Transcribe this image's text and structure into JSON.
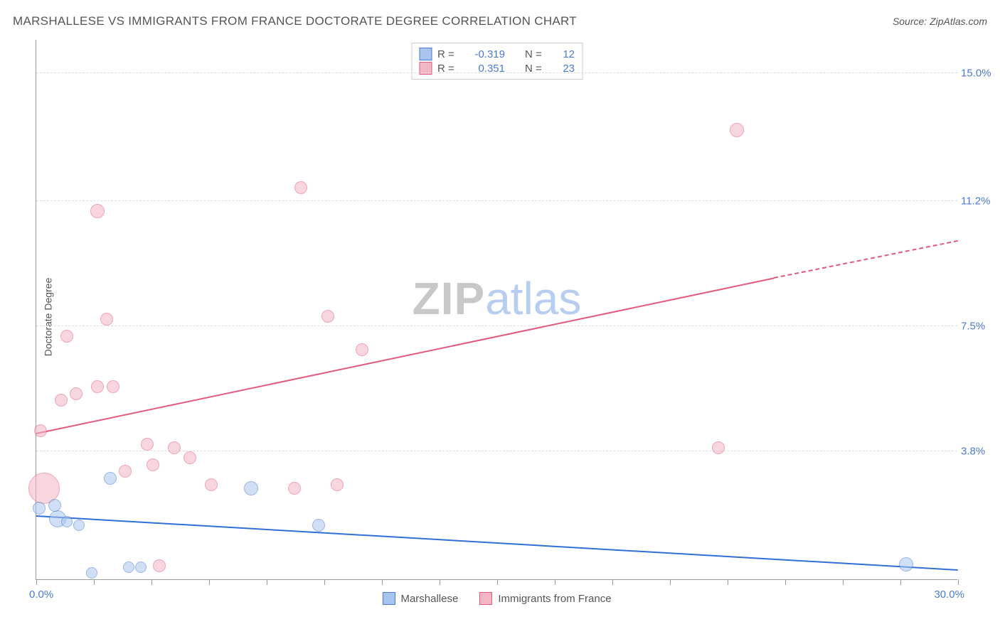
{
  "title": "MARSHALLESE VS IMMIGRANTS FROM FRANCE DOCTORATE DEGREE CORRELATION CHART",
  "source_label": "Source: ZipAtlas.com",
  "y_axis_label": "Doctorate Degree",
  "watermark": {
    "part1": "ZIP",
    "part2": "atlas"
  },
  "chart": {
    "type": "scatter",
    "x_range": [
      0,
      30
    ],
    "y_range": [
      0,
      16
    ],
    "x_min_label": "0.0%",
    "x_max_label": "30.0%",
    "x_tick_positions_pct": [
      0,
      6.25,
      12.5,
      18.75,
      25,
      31.25,
      37.5,
      43.75,
      50,
      56.25,
      62.5,
      68.75,
      75,
      81.25,
      87.5,
      93.75,
      100
    ],
    "y_ticks": [
      {
        "value": 3.8,
        "label": "3.8%"
      },
      {
        "value": 7.5,
        "label": "7.5%"
      },
      {
        "value": 11.2,
        "label": "11.2%"
      },
      {
        "value": 15.0,
        "label": "15.0%"
      }
    ],
    "background_color": "#ffffff",
    "grid_color": "#dddddd",
    "axis_color": "#999999",
    "tick_label_color": "#4a7bd0"
  },
  "series": [
    {
      "name": "Marshallese",
      "fill_color": "#a8c5ee",
      "stroke_color": "#4a7bd0",
      "fill_opacity": 0.55,
      "r_value": "-0.319",
      "n_value": "12",
      "regression": {
        "x0": 0,
        "y0": 1.85,
        "x_solid_end": 30,
        "y_solid_end": 0.25,
        "line_color": "#2f6fd6",
        "has_dashed": false
      },
      "points": [
        {
          "x": 0.1,
          "y": 2.1,
          "r": 9
        },
        {
          "x": 0.7,
          "y": 1.8,
          "r": 12
        },
        {
          "x": 0.6,
          "y": 2.2,
          "r": 9
        },
        {
          "x": 1.0,
          "y": 1.7,
          "r": 8
        },
        {
          "x": 1.4,
          "y": 1.6,
          "r": 8
        },
        {
          "x": 1.8,
          "y": 0.2,
          "r": 8
        },
        {
          "x": 2.4,
          "y": 3.0,
          "r": 9
        },
        {
          "x": 3.0,
          "y": 0.35,
          "r": 8
        },
        {
          "x": 3.4,
          "y": 0.35,
          "r": 8
        },
        {
          "x": 7.0,
          "y": 2.7,
          "r": 10
        },
        {
          "x": 9.2,
          "y": 1.6,
          "r": 9
        },
        {
          "x": 28.3,
          "y": 0.45,
          "r": 10
        }
      ]
    },
    {
      "name": "Immigrants from France",
      "fill_color": "#f2b6c4",
      "stroke_color": "#e15a7e",
      "fill_opacity": 0.55,
      "r_value": "0.351",
      "n_value": "23",
      "regression": {
        "x0": 0,
        "y0": 4.3,
        "x_solid_end": 24,
        "y_solid_end": 8.9,
        "x_dash_end": 30,
        "y_dash_end": 10.0,
        "line_color": "#e15a7e",
        "has_dashed": true
      },
      "points": [
        {
          "x": 0.15,
          "y": 4.4,
          "r": 9
        },
        {
          "x": 0.25,
          "y": 2.7,
          "r": 22
        },
        {
          "x": 0.8,
          "y": 5.3,
          "r": 9
        },
        {
          "x": 1.0,
          "y": 7.2,
          "r": 9
        },
        {
          "x": 1.3,
          "y": 5.5,
          "r": 9
        },
        {
          "x": 2.0,
          "y": 10.9,
          "r": 10
        },
        {
          "x": 2.0,
          "y": 5.7,
          "r": 9
        },
        {
          "x": 2.3,
          "y": 7.7,
          "r": 9
        },
        {
          "x": 2.5,
          "y": 5.7,
          "r": 9
        },
        {
          "x": 2.9,
          "y": 3.2,
          "r": 9
        },
        {
          "x": 3.6,
          "y": 4.0,
          "r": 9
        },
        {
          "x": 3.8,
          "y": 3.4,
          "r": 9
        },
        {
          "x": 4.0,
          "y": 0.4,
          "r": 9
        },
        {
          "x": 4.5,
          "y": 3.9,
          "r": 9
        },
        {
          "x": 5.0,
          "y": 3.6,
          "r": 9
        },
        {
          "x": 5.7,
          "y": 2.8,
          "r": 9
        },
        {
          "x": 8.6,
          "y": 11.6,
          "r": 9
        },
        {
          "x": 8.4,
          "y": 2.7,
          "r": 9
        },
        {
          "x": 9.5,
          "y": 7.8,
          "r": 9
        },
        {
          "x": 9.8,
          "y": 2.8,
          "r": 9
        },
        {
          "x": 10.6,
          "y": 6.8,
          "r": 9
        },
        {
          "x": 22.2,
          "y": 3.9,
          "r": 9
        },
        {
          "x": 22.8,
          "y": 13.3,
          "r": 10
        }
      ]
    }
  ],
  "legend_labels": {
    "R": "R =",
    "N": "N ="
  }
}
